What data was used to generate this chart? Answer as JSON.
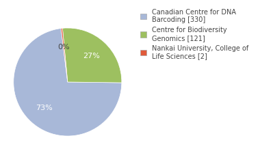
{
  "labels": [
    "Canadian Centre for DNA\nBarcoding [330]",
    "Centre for Biodiversity\nGenomics [121]",
    "Nankai University, College of\nLife Sciences [2]"
  ],
  "values": [
    330,
    121,
    2
  ],
  "colors": [
    "#a8b8d8",
    "#9dc060",
    "#e05a3a"
  ],
  "legend_labels": [
    "Canadian Centre for DNA\nBarcoding [330]",
    "Centre for Biodiversity\nGenomics [121]",
    "Nankai University, College of\nLife Sciences [2]"
  ],
  "background_color": "#ffffff",
  "text_color": "#444444",
  "pct_colors": [
    "white",
    "white",
    "#444444"
  ],
  "fontsize": 8,
  "startangle": 97
}
